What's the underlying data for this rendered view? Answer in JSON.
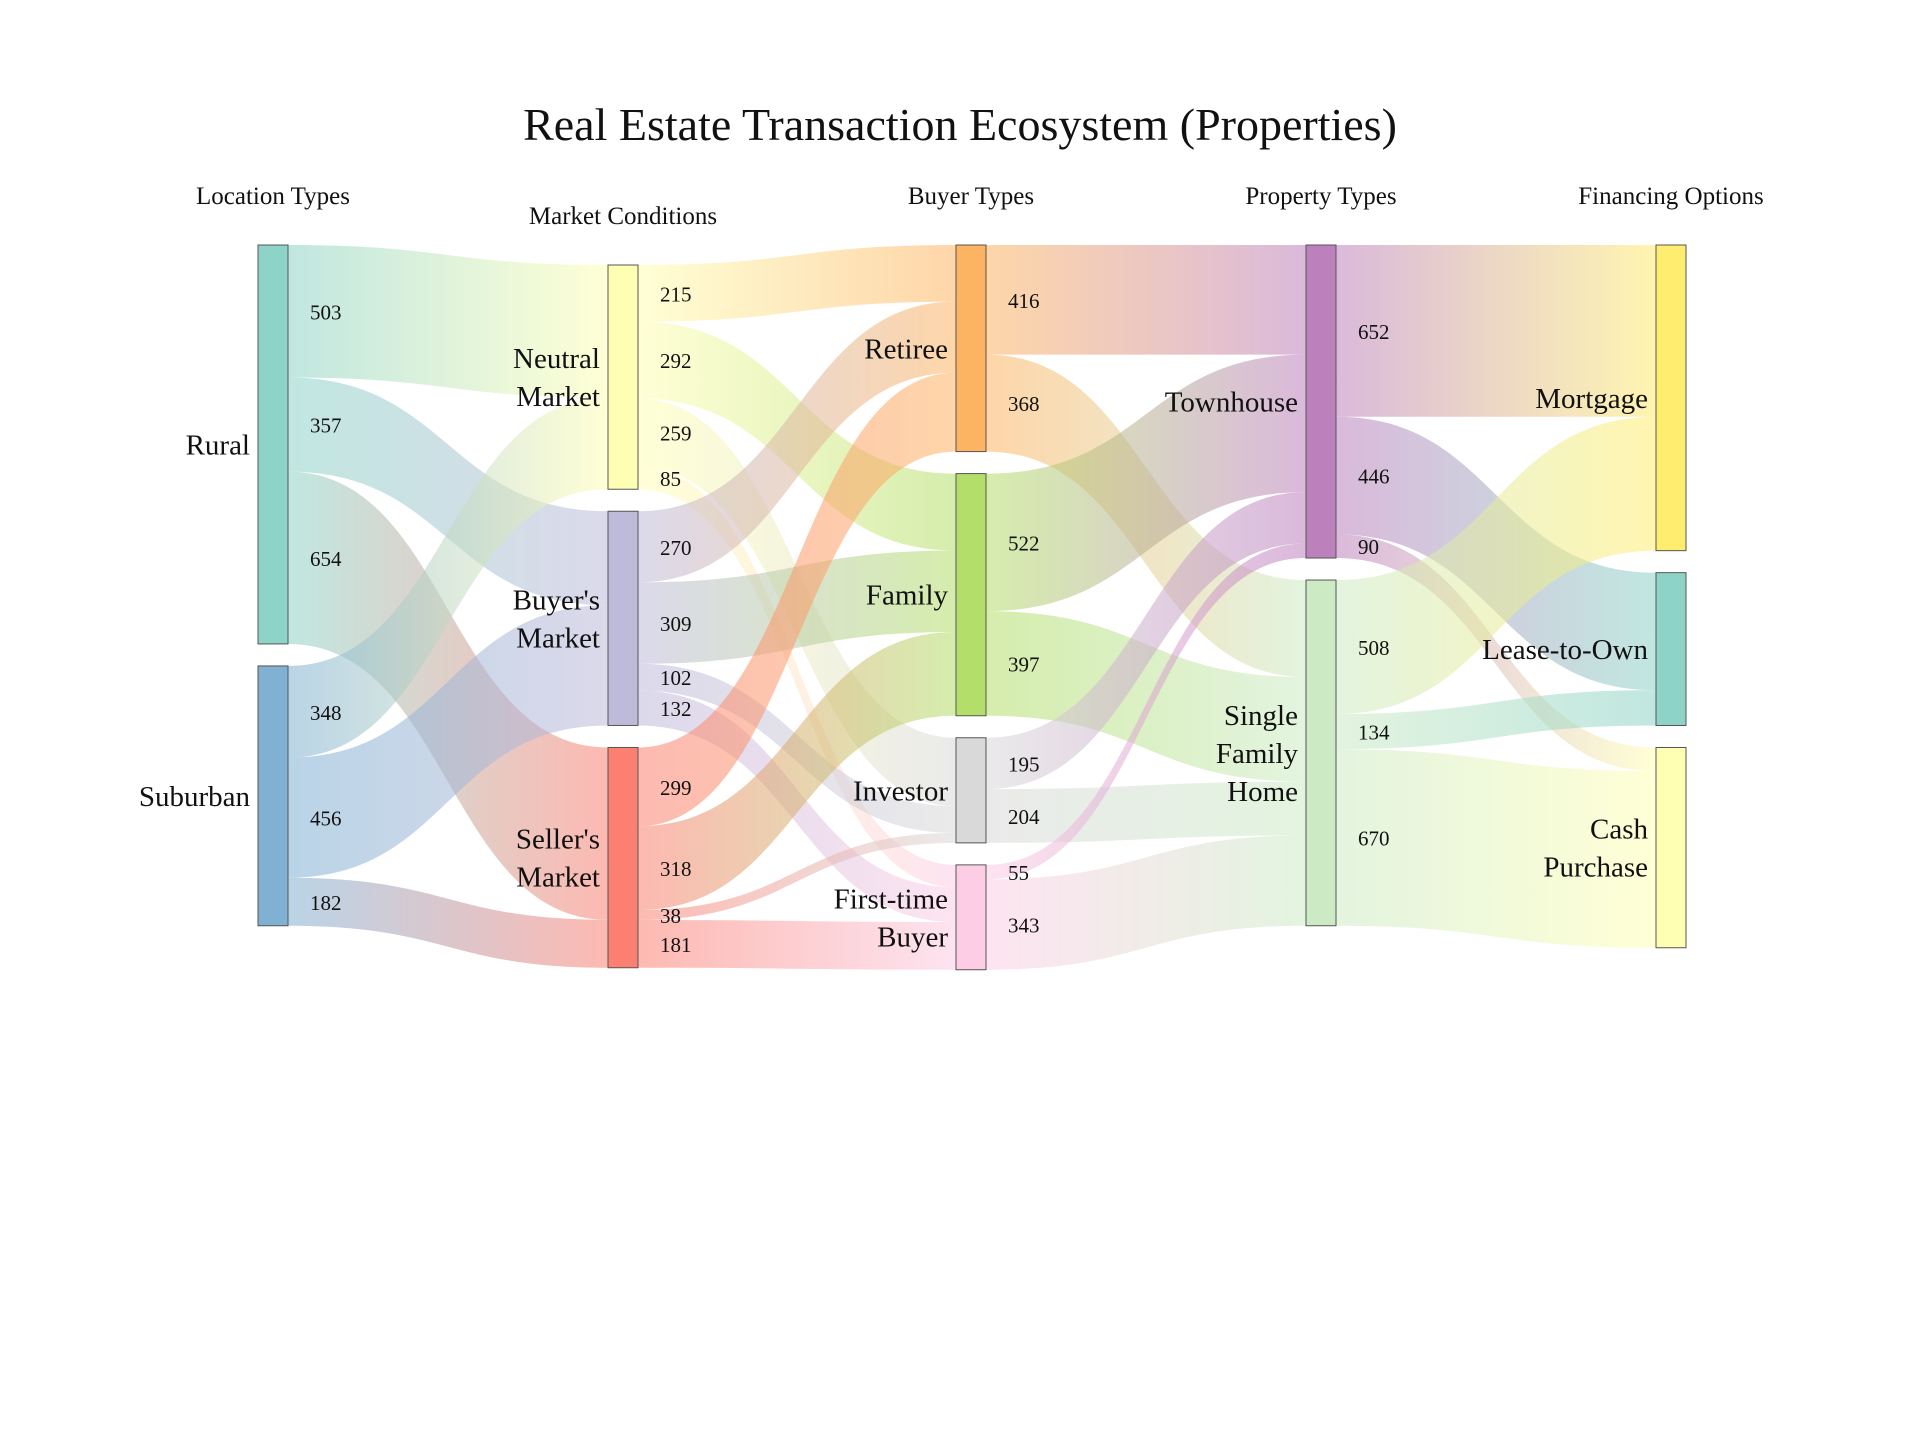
{
  "title": "Real Estate Transaction Ecosystem (Properties)",
  "unit": "Properties",
  "chart_data": {
    "type": "sankey",
    "stages": [
      {
        "id": "location",
        "label": "Location Types"
      },
      {
        "id": "market",
        "label": "Market Conditions"
      },
      {
        "id": "buyer",
        "label": "Buyer Types"
      },
      {
        "id": "property",
        "label": "Property Types"
      },
      {
        "id": "financing",
        "label": "Financing Options"
      }
    ],
    "nodes": [
      {
        "id": "rural",
        "label": "Rural",
        "stage": "location",
        "color": "#8dd3c7"
      },
      {
        "id": "suburban",
        "label": "Suburban",
        "stage": "location",
        "color": "#80b1d3"
      },
      {
        "id": "neutral",
        "label": "Neutral Market",
        "stage": "market",
        "color": "#ffffb3"
      },
      {
        "id": "buyers",
        "label": "Buyer's Market",
        "stage": "market",
        "color": "#bebada"
      },
      {
        "id": "sellers",
        "label": "Seller's Market",
        "stage": "market",
        "color": "#fb8072"
      },
      {
        "id": "retiree",
        "label": "Retiree",
        "stage": "buyer",
        "color": "#fdb462"
      },
      {
        "id": "family",
        "label": "Family",
        "stage": "buyer",
        "color": "#b3de69"
      },
      {
        "id": "investor",
        "label": "Investor",
        "stage": "buyer",
        "color": "#d9d9d9"
      },
      {
        "id": "firsttime",
        "label": "First-time Buyer",
        "stage": "buyer",
        "color": "#fccde5"
      },
      {
        "id": "townhouse",
        "label": "Townhouse",
        "stage": "property",
        "color": "#bc80bd"
      },
      {
        "id": "sfh",
        "label": "Single Family Home",
        "stage": "property",
        "color": "#ccebc5"
      },
      {
        "id": "mortgage",
        "label": "Mortgage",
        "stage": "financing",
        "color": "#ffed6f"
      },
      {
        "id": "lease",
        "label": "Lease-to-Own",
        "stage": "financing",
        "color": "#8dd3c7"
      },
      {
        "id": "cash",
        "label": "Cash Purchase",
        "stage": "financing",
        "color": "#ffffb3"
      }
    ],
    "links": [
      {
        "source": "rural",
        "target": "neutral",
        "value": 503
      },
      {
        "source": "rural",
        "target": "buyers",
        "value": 357
      },
      {
        "source": "rural",
        "target": "sellers",
        "value": 654
      },
      {
        "source": "suburban",
        "target": "neutral",
        "value": 348
      },
      {
        "source": "suburban",
        "target": "buyers",
        "value": 456
      },
      {
        "source": "suburban",
        "target": "sellers",
        "value": 182
      },
      {
        "source": "neutral",
        "target": "retiree",
        "value": 215
      },
      {
        "source": "neutral",
        "target": "family",
        "value": 292
      },
      {
        "source": "neutral",
        "target": "investor",
        "value": 259
      },
      {
        "source": "neutral",
        "target": "firsttime",
        "value": 85
      },
      {
        "source": "buyers",
        "target": "retiree",
        "value": 270
      },
      {
        "source": "buyers",
        "target": "family",
        "value": 309
      },
      {
        "source": "buyers",
        "target": "investor",
        "value": 102
      },
      {
        "source": "buyers",
        "target": "firsttime",
        "value": 132
      },
      {
        "source": "sellers",
        "target": "retiree",
        "value": 299
      },
      {
        "source": "sellers",
        "target": "family",
        "value": 318
      },
      {
        "source": "sellers",
        "target": "investor",
        "value": 38
      },
      {
        "source": "sellers",
        "target": "firsttime",
        "value": 181
      },
      {
        "source": "retiree",
        "target": "townhouse",
        "value": 416
      },
      {
        "source": "retiree",
        "target": "sfh",
        "value": 368
      },
      {
        "source": "family",
        "target": "townhouse",
        "value": 522
      },
      {
        "source": "family",
        "target": "sfh",
        "value": 397
      },
      {
        "source": "investor",
        "target": "townhouse",
        "value": 195
      },
      {
        "source": "investor",
        "target": "sfh",
        "value": 204
      },
      {
        "source": "firsttime",
        "target": "townhouse",
        "value": 55
      },
      {
        "source": "firsttime",
        "target": "sfh",
        "value": 343
      },
      {
        "source": "townhouse",
        "target": "mortgage",
        "value": 652
      },
      {
        "source": "townhouse",
        "target": "lease",
        "value": 446
      },
      {
        "source": "townhouse",
        "target": "cash",
        "value": 90
      },
      {
        "source": "sfh",
        "target": "mortgage",
        "value": 508
      },
      {
        "source": "sfh",
        "target": "lease",
        "value": 134
      },
      {
        "source": "sfh",
        "target": "cash",
        "value": 670
      }
    ]
  }
}
